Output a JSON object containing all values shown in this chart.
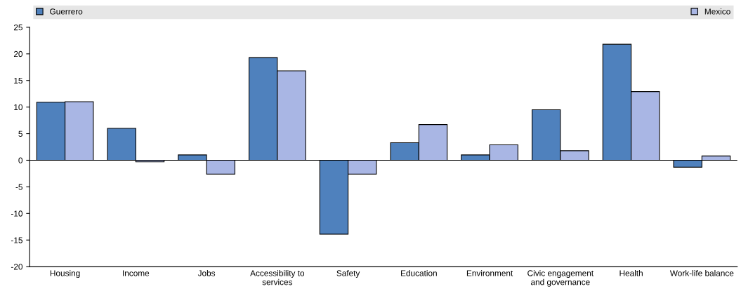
{
  "chart_data": {
    "type": "bar",
    "categories": [
      "Housing",
      "Income",
      "Jobs",
      "Accessibility to\nservices",
      "Safety",
      "Education",
      "Environment",
      "Civic engagement\nand governance",
      "Health",
      "Work-life balance"
    ],
    "series": [
      {
        "name": "Guerrero",
        "color": "#4f81bd",
        "values": [
          10.9,
          6.0,
          1.0,
          19.3,
          -13.9,
          3.3,
          1.0,
          9.5,
          21.8,
          -1.3
        ]
      },
      {
        "name": "Mexico",
        "color": "#a9b6e4",
        "values": [
          11.0,
          -0.3,
          -2.6,
          16.8,
          -2.6,
          6.7,
          2.9,
          1.8,
          12.9,
          0.8
        ]
      }
    ],
    "ylim": [
      -20,
      25
    ],
    "yticks": [
      -20,
      -15,
      -10,
      -5,
      0,
      5,
      10,
      15,
      20,
      25
    ],
    "ref_lines": [
      {
        "axis": "y",
        "value": 0,
        "color": "#000000"
      }
    ],
    "grid": false,
    "legend": "top"
  }
}
